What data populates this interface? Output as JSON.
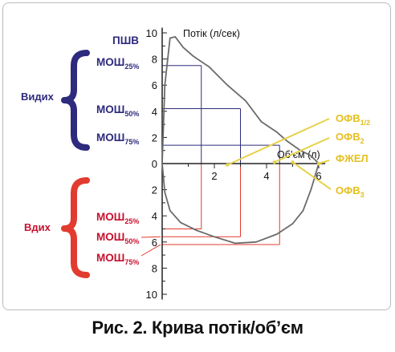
{
  "chart_data": {
    "type": "line",
    "caption": "Рис. 2. Крива потік/об’єм",
    "ylabel": "Потік (л/сек)",
    "xlabel": "Об’єм (л)",
    "x_ticks": [
      "2",
      "4",
      "6"
    ],
    "y_ticks_up": [
      "0",
      "2",
      "4",
      "6",
      "8",
      "10"
    ],
    "y_ticks_down": [
      "2",
      "4",
      "6",
      "8",
      "10"
    ],
    "xlim": [
      0,
      6
    ],
    "ylim": [
      -10,
      10
    ],
    "expiration": {
      "label": "Видих",
      "peak_label": "ПШВ",
      "x": [
        0,
        0.1,
        0.3,
        0.5,
        0.8,
        1.2,
        1.8,
        2.5,
        3.2,
        3.8,
        4.1,
        4.4,
        4.8,
        5.3,
        5.7,
        6.0
      ],
      "y": [
        0,
        6.0,
        9.6,
        9.7,
        8.9,
        8.2,
        7.4,
        6.0,
        4.8,
        3.2,
        2.8,
        2.4,
        1.7,
        1.0,
        0.6,
        0
      ]
    },
    "inspiration": {
      "label": "Вдих",
      "x": [
        0,
        0.1,
        0.3,
        0.7,
        1.3,
        2.0,
        2.8,
        3.6,
        4.4,
        5.0,
        5.4,
        5.7,
        6.0
      ],
      "y": [
        0,
        -2.2,
        -3.6,
        -4.5,
        -5.1,
        -5.6,
        -6.1,
        -6.0,
        -5.4,
        -4.6,
        -3.6,
        -2.0,
        0
      ]
    },
    "expiratory_markers": [
      {
        "label": "МОШ",
        "sub": "25%",
        "flow": 7.5,
        "volume": 1.5
      },
      {
        "label": "МОШ",
        "sub": "50%",
        "flow": 4.2,
        "volume": 3.0
      },
      {
        "label": "МОШ",
        "sub": "75%",
        "flow": 1.4,
        "volume": 4.5
      }
    ],
    "inspiratory_markers": [
      {
        "label": "МОШ",
        "sub": "25%",
        "flow": 5.0,
        "volume": 1.5
      },
      {
        "label": "МОШ",
        "sub": "50%",
        "flow": 5.6,
        "volume": 3.0
      },
      {
        "label": "МОШ",
        "sub": "75%",
        "flow": 6.2,
        "volume": 4.5
      }
    ],
    "annotations": [
      {
        "label": "ОФВ",
        "sub": "1/2",
        "x": 2.5
      },
      {
        "label": "ОФВ",
        "sub": "2",
        "x": 4.3
      },
      {
        "label": "ФЖЕЛ",
        "sub": "",
        "x": 6.0
      },
      {
        "label": "ОФВ",
        "sub": "3",
        "x": 5.0
      }
    ],
    "colors": {
      "curve": "#6b6b6b",
      "expiration": "#2e2a7d",
      "inspiration": "#e23b2f",
      "inspiration_text": "#c8102e",
      "annotation": "#e6d24a",
      "annotation_text": "#e6bf1c",
      "axis": "#222222"
    }
  }
}
